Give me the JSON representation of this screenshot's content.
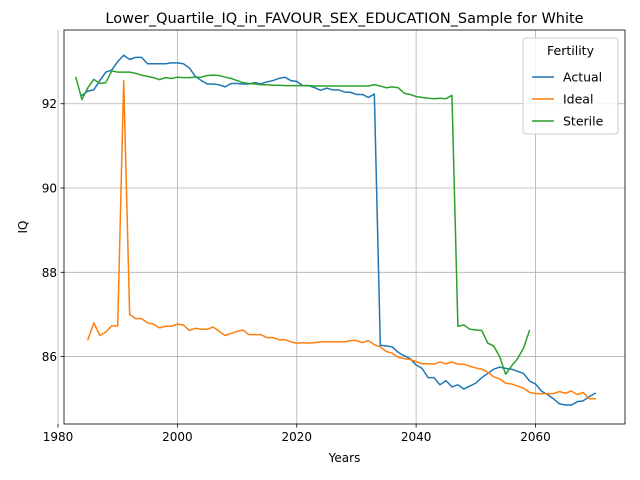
{
  "chart_data": {
    "type": "line",
    "title": "Lower_Quartile_IQ_in_FAVOUR_SEX_EDUCATION_Sample for White",
    "xlabel": "Years",
    "ylabel": "IQ",
    "xlim": [
      1981,
      2075
    ],
    "ylim": [
      84.4,
      93.75
    ],
    "xticks": [
      1980,
      2000,
      2020,
      2040,
      2060
    ],
    "yticks": [
      86,
      88,
      90,
      92
    ],
    "grid": true,
    "legend": {
      "title": "Fertility",
      "placement": "upper right"
    },
    "series": [
      {
        "name": "Actual",
        "color": "#1f77b4",
        "x": [
          1984,
          1985,
          1986,
          1987,
          1988,
          1989,
          1990,
          1991,
          1992,
          1993,
          1994,
          1995,
          1996,
          1997,
          1998,
          1999,
          2000,
          2001,
          2002,
          2003,
          2004,
          2005,
          2006,
          2007,
          2008,
          2009,
          2010,
          2011,
          2012,
          2013,
          2014,
          2015,
          2016,
          2017,
          2018,
          2019,
          2020,
          2021,
          2022,
          2023,
          2024,
          2025,
          2026,
          2027,
          2028,
          2029,
          2030,
          2031,
          2032,
          2033,
          2034,
          2035,
          2036,
          2037,
          2038,
          2039,
          2040,
          2041,
          2042,
          2043,
          2044,
          2045,
          2046,
          2047,
          2048,
          2049,
          2050,
          2051,
          2052,
          2053,
          2054,
          2055,
          2056,
          2057,
          2058,
          2059,
          2060,
          2061,
          2062,
          2063,
          2064,
          2065,
          2066,
          2067,
          2068,
          2069,
          2070
        ],
        "values": [
          92.2,
          92.3,
          92.33,
          92.55,
          92.75,
          92.8,
          93.0,
          93.15,
          93.05,
          93.1,
          93.1,
          92.95,
          92.95,
          92.95,
          92.95,
          92.97,
          92.97,
          92.95,
          92.85,
          92.65,
          92.55,
          92.47,
          92.47,
          92.45,
          92.4,
          92.48,
          92.48,
          92.47,
          92.47,
          92.5,
          92.47,
          92.52,
          92.55,
          92.6,
          92.63,
          92.55,
          92.53,
          92.43,
          92.43,
          92.38,
          92.32,
          92.37,
          92.33,
          92.33,
          92.28,
          92.27,
          92.22,
          92.22,
          92.15,
          92.23,
          86.27,
          86.25,
          86.23,
          86.1,
          86.02,
          85.95,
          85.8,
          85.72,
          85.5,
          85.5,
          85.33,
          85.43,
          85.28,
          85.33,
          85.23,
          85.3,
          85.37,
          85.5,
          85.6,
          85.7,
          85.75,
          85.72,
          85.7,
          85.65,
          85.6,
          85.42,
          85.35,
          85.18,
          85.1,
          85.0,
          84.88,
          84.85,
          84.85,
          84.93,
          84.95,
          85.05,
          85.13
        ]
      },
      {
        "name": "Ideal",
        "color": "#ff7f0e",
        "x": [
          1985,
          1986,
          1987,
          1988,
          1989,
          1990,
          1991,
          1992,
          1993,
          1994,
          1995,
          1996,
          1997,
          1998,
          1999,
          2000,
          2001,
          2002,
          2003,
          2004,
          2005,
          2006,
          2007,
          2008,
          2009,
          2010,
          2011,
          2012,
          2013,
          2014,
          2015,
          2016,
          2017,
          2018,
          2019,
          2020,
          2021,
          2022,
          2023,
          2024,
          2025,
          2026,
          2027,
          2028,
          2029,
          2030,
          2031,
          2032,
          2033,
          2034,
          2035,
          2036,
          2037,
          2038,
          2039,
          2040,
          2041,
          2042,
          2043,
          2044,
          2045,
          2046,
          2047,
          2048,
          2049,
          2050,
          2051,
          2052,
          2053,
          2054,
          2055,
          2056,
          2057,
          2058,
          2059,
          2060,
          2061,
          2062,
          2063,
          2064,
          2065,
          2066,
          2067,
          2068,
          2069,
          2070
        ],
        "values": [
          86.4,
          86.8,
          86.5,
          86.58,
          86.73,
          86.73,
          92.55,
          87.0,
          86.9,
          86.9,
          86.8,
          86.77,
          86.68,
          86.72,
          86.72,
          86.77,
          86.75,
          86.62,
          86.67,
          86.65,
          86.65,
          86.7,
          86.6,
          86.5,
          86.55,
          86.6,
          86.63,
          86.52,
          86.52,
          86.52,
          86.45,
          86.45,
          86.4,
          86.4,
          86.35,
          86.32,
          86.33,
          86.32,
          86.33,
          86.35,
          86.35,
          86.35,
          86.35,
          86.35,
          86.38,
          86.38,
          86.33,
          86.38,
          86.28,
          86.23,
          86.12,
          86.08,
          85.98,
          85.95,
          85.93,
          85.88,
          85.83,
          85.83,
          85.82,
          85.87,
          85.83,
          85.87,
          85.82,
          85.82,
          85.77,
          85.73,
          85.7,
          85.63,
          85.52,
          85.47,
          85.37,
          85.35,
          85.3,
          85.25,
          85.15,
          85.12,
          85.12,
          85.12,
          85.12,
          85.17,
          85.13,
          85.18,
          85.1,
          85.15,
          85.0,
          85.0
        ]
      },
      {
        "name": "Sterile",
        "color": "#2ca02c",
        "x": [
          1983,
          1984,
          1985,
          1986,
          1987,
          1988,
          1989,
          1990,
          1991,
          1992,
          1993,
          1994,
          1995,
          1996,
          1997,
          1998,
          1999,
          2000,
          2001,
          2002,
          2003,
          2004,
          2005,
          2006,
          2007,
          2008,
          2009,
          2010,
          2011,
          2012,
          2013,
          2014,
          2015,
          2016,
          2017,
          2018,
          2019,
          2020,
          2021,
          2022,
          2023,
          2024,
          2025,
          2026,
          2027,
          2028,
          2029,
          2030,
          2031,
          2032,
          2033,
          2034,
          2035,
          2036,
          2037,
          2038,
          2039,
          2040,
          2041,
          2042,
          2043,
          2044,
          2045,
          2046,
          2047,
          2048,
          2049,
          2050,
          2051,
          2052,
          2053,
          2054,
          2055,
          2056,
          2057,
          2058,
          2059
        ],
        "values": [
          92.62,
          92.1,
          92.38,
          92.58,
          92.48,
          92.5,
          92.78,
          92.75,
          92.75,
          92.75,
          92.72,
          92.68,
          92.65,
          92.62,
          92.57,
          92.62,
          92.6,
          92.63,
          92.62,
          92.62,
          92.63,
          92.63,
          92.67,
          92.68,
          92.67,
          92.63,
          92.6,
          92.55,
          92.5,
          92.48,
          92.47,
          92.45,
          92.45,
          92.44,
          92.44,
          92.43,
          92.43,
          92.43,
          92.43,
          92.43,
          92.42,
          92.42,
          92.42,
          92.42,
          92.42,
          92.42,
          92.42,
          92.42,
          92.42,
          92.42,
          92.45,
          92.42,
          92.38,
          92.4,
          92.38,
          92.25,
          92.22,
          92.17,
          92.15,
          92.13,
          92.12,
          92.13,
          92.12,
          92.2,
          86.72,
          86.75,
          86.65,
          86.63,
          86.62,
          86.32,
          86.25,
          86.0,
          85.58,
          85.78,
          85.95,
          86.2,
          86.62
        ]
      }
    ]
  }
}
